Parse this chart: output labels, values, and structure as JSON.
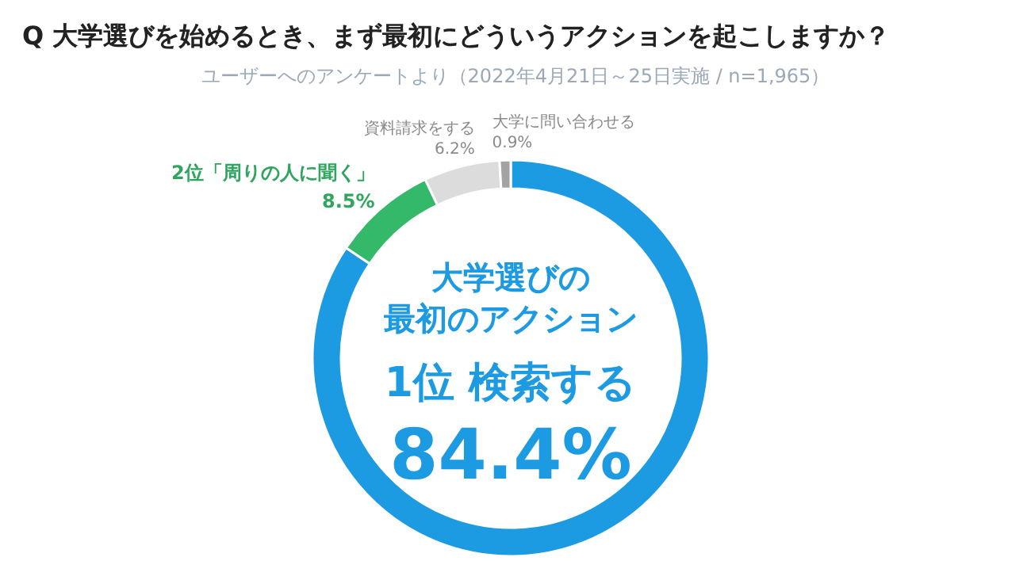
{
  "chart_data": {
    "type": "donut",
    "title": "Q 大学選びを始めるとき、まず最初にどういうアクションを起こしますか？",
    "subtitle": "ユーザーへのアンケートより（2022年4月21日～25日実施 / n=1,965）",
    "categories": [
      "1位 検索する",
      "2位「周りの人に聞く」",
      "資料請求をする",
      "大学に問い合わせる"
    ],
    "values": [
      84.4,
      8.5,
      6.2,
      0.9
    ],
    "colors": [
      "#1d9be2",
      "#34b86a",
      "#dcdcdc",
      "#a3a3a3"
    ],
    "value_labels": [
      "84.4%",
      "8.5%",
      "6.2%",
      "0.9%"
    ],
    "annotations": [
      "大学選びの",
      "最初のアクション"
    ]
  }
}
